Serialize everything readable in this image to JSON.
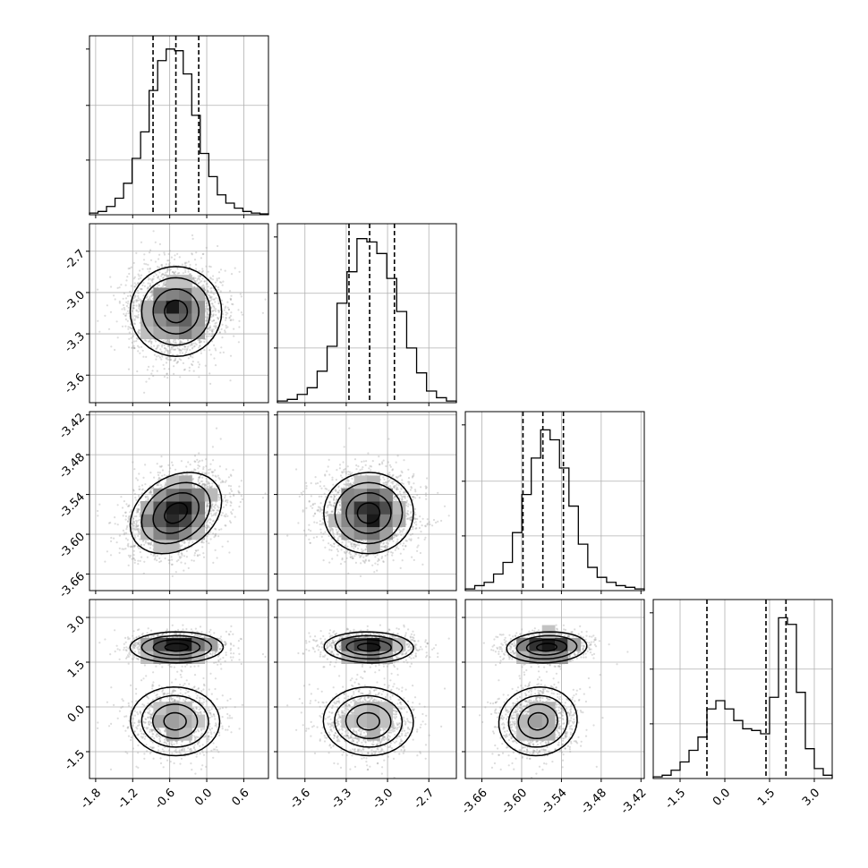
{
  "chart_data": {
    "type": "corner",
    "parameters": [
      {
        "index": 0,
        "range": [
          -1.9,
          1.0
        ],
        "ticks": [
          "-1.8",
          "-1.2",
          "-0.6",
          "0.0",
          "0.6"
        ],
        "tick_values": [
          -1.8,
          -1.2,
          -0.6,
          0.0,
          0.6
        ],
        "quantiles": [
          -0.87,
          -0.5,
          -0.13
        ],
        "hist_range": [
          -1.9,
          1.0
        ],
        "hist_max": 1.0,
        "hist": [
          0.01,
          0.02,
          0.05,
          0.1,
          0.19,
          0.34,
          0.5,
          0.75,
          0.93,
          1.0,
          0.99,
          0.85,
          0.6,
          0.37,
          0.23,
          0.12,
          0.07,
          0.04,
          0.02,
          0.01,
          0.005
        ]
      },
      {
        "index": 1,
        "range": [
          -3.8,
          -2.5
        ],
        "ticks": [
          "-3.6",
          "-3.3",
          "-3.0",
          "-2.7"
        ],
        "tick_values": [
          -3.6,
          -3.3,
          -3.0,
          -2.7
        ],
        "quantiles": [
          -3.28,
          -3.13,
          -2.95
        ],
        "hist_range": [
          -3.8,
          -2.5
        ],
        "hist_max": 1.0,
        "hist": [
          0.01,
          0.02,
          0.05,
          0.09,
          0.19,
          0.34,
          0.6,
          0.79,
          0.99,
          0.97,
          0.9,
          0.75,
          0.55,
          0.33,
          0.18,
          0.07,
          0.03,
          0.01
        ]
      },
      {
        "index": 2,
        "range": [
          -3.685,
          -3.415
        ],
        "ticks": [
          "-3.66",
          "-3.60",
          "-3.54",
          "-3.48",
          "-3.42"
        ],
        "tick_values": [
          -3.66,
          -3.6,
          -3.54,
          -3.48,
          -3.42
        ],
        "quantiles": [
          -3.598,
          -3.568,
          -3.537
        ],
        "hist_range": [
          -3.685,
          -3.415
        ],
        "hist_max": 1.0,
        "hist": [
          0.01,
          0.03,
          0.05,
          0.1,
          0.17,
          0.35,
          0.58,
          0.8,
          0.97,
          0.91,
          0.74,
          0.51,
          0.28,
          0.14,
          0.08,
          0.05,
          0.03,
          0.02,
          0.01
        ]
      },
      {
        "index": 3,
        "range": [
          -2.4,
          3.6
        ],
        "ticks": [
          "-1.5",
          "0.0",
          "1.5",
          "3.0"
        ],
        "tick_values": [
          -1.5,
          0.0,
          1.5,
          3.0
        ],
        "quantiles": [
          -0.6,
          1.38,
          2.05
        ],
        "hist_range": [
          -2.4,
          3.6
        ],
        "hist_max": 1.0,
        "hist": [
          0.01,
          0.02,
          0.05,
          0.1,
          0.17,
          0.25,
          0.42,
          0.47,
          0.42,
          0.35,
          0.3,
          0.29,
          0.27,
          0.49,
          0.97,
          0.93,
          0.52,
          0.18,
          0.06,
          0.02
        ]
      }
    ],
    "row_tick_labels": {
      "1": [
        "-2.7",
        "-3.0",
        "-3.3",
        "-3.6"
      ],
      "2": [
        "-3.42",
        "-3.48",
        "-3.54",
        "-3.60",
        "-3.66"
      ],
      "3": [
        "3.0",
        "1.5",
        "0.0",
        "-1.5"
      ]
    },
    "column_tick_labels": {
      "0": [
        "-1.8",
        "-1.2",
        "-0.6",
        "0.0",
        "0.6"
      ],
      "1": [
        "-3.6",
        "-3.3",
        "-3.0",
        "-2.7"
      ],
      "2": [
        "-3.66",
        "-3.60",
        "-3.54",
        "-3.48",
        "-3.42"
      ],
      "3": [
        "-1.5",
        "0.0",
        "1.5",
        "3.0"
      ]
    },
    "correlations": {
      "1-0": 0.05,
      "2-0": 0.25,
      "2-1": 0.05,
      "3-0": -0.05,
      "3-1": 0.05,
      "3-2": 0.35
    },
    "mode_weights": {
      "3": [
        0.45,
        0.55
      ]
    },
    "mode_centers": {
      "3": [
        -0.5,
        2.0
      ]
    },
    "mode_sigmas": {
      "3": [
        0.6,
        0.25
      ]
    },
    "grid": true,
    "colors": {
      "points": "#9a9a9a",
      "contour": "#000000",
      "hist": "#000000"
    }
  }
}
